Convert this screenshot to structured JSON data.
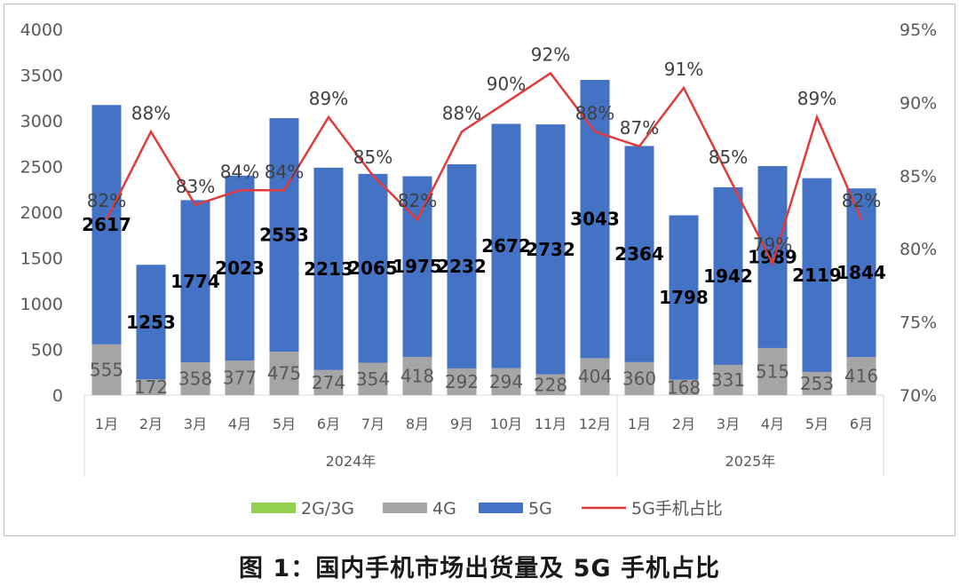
{
  "chart_data": {
    "type": "bar",
    "stacked": true,
    "categories": [
      "1月",
      "2月",
      "3月",
      "4月",
      "5月",
      "6月",
      "7月",
      "8月",
      "9月",
      "10月",
      "11月",
      "12月",
      "1月",
      "2月",
      "3月",
      "4月",
      "5月",
      "6月"
    ],
    "year_groups": [
      {
        "label": "2024年",
        "count": 12
      },
      {
        "label": "2025年",
        "count": 6
      }
    ],
    "series": [
      {
        "name": "2G/3G",
        "color": "#92d050",
        "values": [
          0,
          0,
          0,
          0,
          0,
          0,
          0,
          0,
          0,
          0,
          0,
          0,
          0,
          0,
          0,
          0,
          0,
          0
        ]
      },
      {
        "name": "4G",
        "color": "#a5a5a5",
        "values": [
          555,
          172,
          358,
          377,
          475,
          274,
          354,
          418,
          292,
          294,
          228,
          404,
          360,
          168,
          331,
          515,
          253,
          416
        ]
      },
      {
        "name": "5G",
        "color": "#4472c4",
        "values": [
          2617,
          1253,
          1774,
          2023,
          2553,
          2213,
          2065,
          1975,
          2232,
          2672,
          2732,
          3043,
          2364,
          1798,
          1942,
          1989,
          2119,
          1844
        ]
      }
    ],
    "line_series": {
      "name": "5G手机占比",
      "color": "#e03a3a",
      "values": [
        82,
        88,
        83,
        84,
        84,
        89,
        85,
        82,
        88,
        90,
        92,
        88,
        87,
        91,
        85,
        79,
        89,
        82
      ],
      "labels": [
        "82%",
        "88%",
        "83%",
        "84%",
        "84%",
        "89%",
        "85%",
        "82%",
        "88%",
        "90%",
        "92%",
        "88%",
        "87%",
        "91%",
        "85%",
        "79%",
        "89%",
        "82%"
      ]
    },
    "y_left": {
      "min": 0,
      "max": 4000,
      "ticks": [
        "0",
        "500",
        "1000",
        "1500",
        "2000",
        "2500",
        "3000",
        "3500",
        "4000"
      ]
    },
    "y_right": {
      "min": 70,
      "max": 95,
      "ticks": [
        "70%",
        "75%",
        "80%",
        "85%",
        "90%",
        "95%"
      ]
    },
    "grid": false,
    "legend_position": "bottom",
    "title": "图 1：国内手机市场出货量及 5G 手机占比"
  }
}
